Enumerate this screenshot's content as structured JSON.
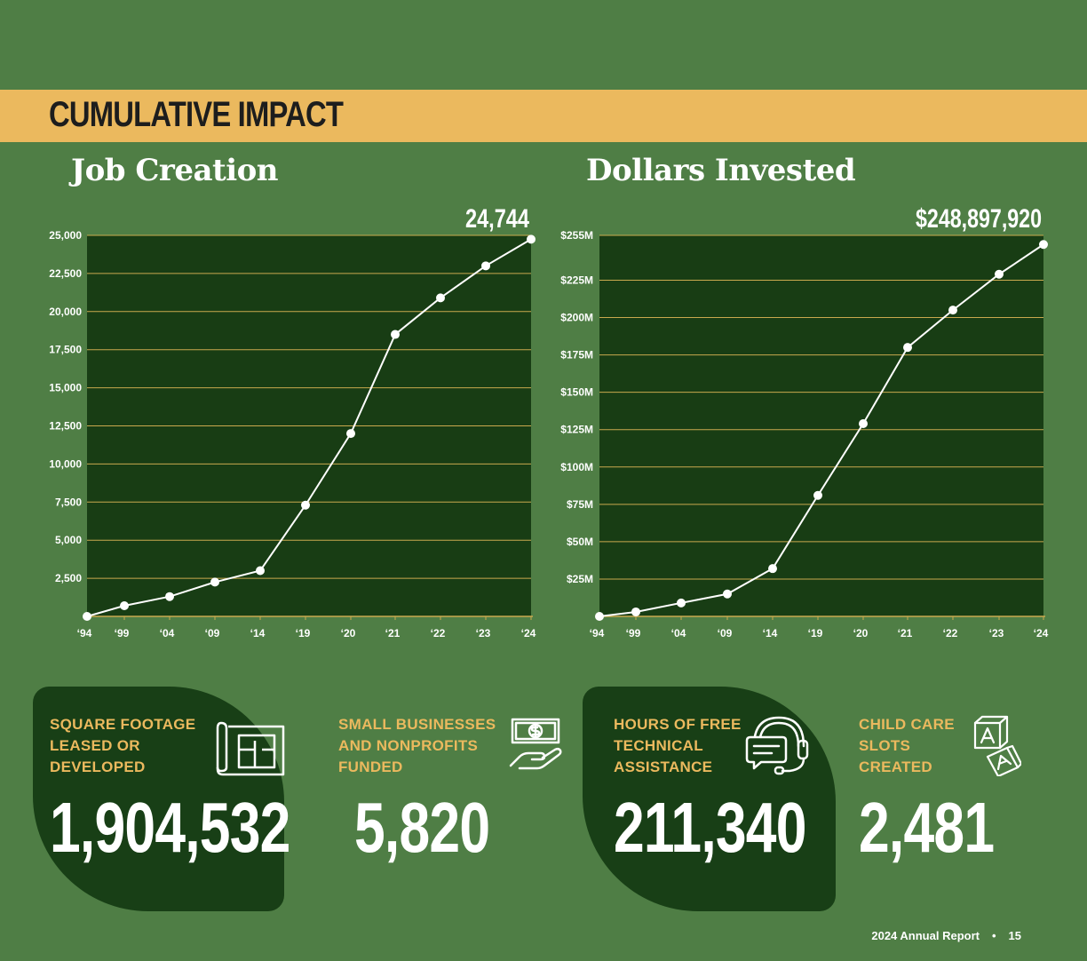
{
  "section_title": "CUMULATIVE IMPACT",
  "colors": {
    "background": "#4f7e45",
    "banner": "#ebb95e",
    "plot_bg": "#183d14",
    "gridline": "#c9a94e",
    "accent_text": "#ebb95e",
    "line": "#ffffff"
  },
  "chart_data": [
    {
      "type": "line",
      "title": "Job Creation",
      "categories": [
        "‘94",
        "‘99",
        "‘04",
        "‘09",
        "‘14",
        "‘19",
        "‘20",
        "‘21",
        "‘22",
        "‘23",
        "‘24"
      ],
      "values": [
        0,
        700,
        1300,
        2250,
        3000,
        7300,
        12000,
        18500,
        20900,
        23000,
        24744
      ],
      "final_label": "24,744",
      "ylim": [
        0,
        25000
      ],
      "yticks": [
        2500,
        5000,
        7500,
        10000,
        12500,
        15000,
        17500,
        20000,
        22500,
        25000
      ],
      "ytick_labels": [
        "2,500",
        "5,000",
        "7,500",
        "10,000",
        "12,500",
        "15,000",
        "17,500",
        "20,000",
        "22,500",
        "25,000"
      ],
      "grid": true
    },
    {
      "type": "line",
      "title": "Dollars Invested",
      "categories": [
        "‘94",
        "‘99",
        "‘04",
        "‘09",
        "‘14",
        "‘19",
        "‘20",
        "‘21",
        "‘22",
        "‘23",
        "‘24"
      ],
      "values": [
        0,
        3,
        9,
        15,
        32,
        81,
        129,
        180,
        205,
        229,
        248.9
      ],
      "final_label": "$248,897,920",
      "ylim": [
        0,
        255
      ],
      "yticks": [
        25,
        50,
        75,
        100,
        125,
        150,
        175,
        200,
        225,
        255
      ],
      "ytick_labels": [
        "$25M",
        "$50M",
        "$75M",
        "$100M",
        "$125M",
        "$150M",
        "$175M",
        "$200M",
        "$225M",
        "$255M"
      ],
      "grid": true
    }
  ],
  "stats": [
    {
      "label_lines": [
        "SQUARE FOOTAGE",
        "LEASED OR",
        "DEVELOPED"
      ],
      "value": "1,904,532",
      "icon": "blueprint-icon"
    },
    {
      "label_lines": [
        "SMALL BUSINESSES",
        "AND NONPROFITS",
        "FUNDED"
      ],
      "value": "5,820",
      "icon": "money-hand-icon"
    },
    {
      "label_lines": [
        "HOURS OF FREE",
        "TECHNICAL",
        "ASSISTANCE"
      ],
      "value": "211,340",
      "icon": "headset-icon"
    },
    {
      "label_lines": [
        "CHILD CARE",
        "SLOTS",
        "CREATED"
      ],
      "value": "2,481",
      "icon": "blocks-icon"
    }
  ],
  "footer": {
    "report": "2024 Annual Report",
    "page": "15"
  }
}
